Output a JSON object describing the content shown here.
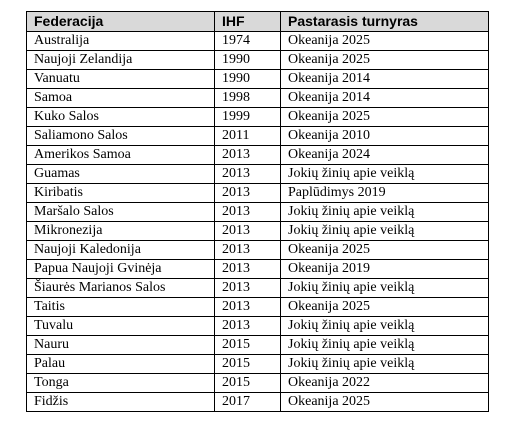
{
  "table": {
    "headers": [
      "Federacija",
      "IHF",
      "Pastarasis turnyras"
    ],
    "rows": [
      [
        "Australija",
        "1974",
        "Okeanija 2025"
      ],
      [
        "Naujoji Zelandija",
        "1990",
        "Okeanija 2025"
      ],
      [
        "Vanuatu",
        "1990",
        "Okeanija 2014"
      ],
      [
        "Samoa",
        "1998",
        "Okeanija 2014"
      ],
      [
        "Kuko Salos",
        "1999",
        "Okeanija 2025"
      ],
      [
        "Saliamono Salos",
        "2011",
        "Okeanija 2010"
      ],
      [
        "Amerikos Samoa",
        "2013",
        "Okeanija 2024"
      ],
      [
        "Guamas",
        "2013",
        "Jokių žinių apie veiklą"
      ],
      [
        "Kiribatis",
        "2013",
        "Paplūdimys 2019"
      ],
      [
        "Maršalo Salos",
        "2013",
        "Jokių žinių apie veiklą"
      ],
      [
        "Mikronezija",
        "2013",
        "Jokių žinių apie veiklą"
      ],
      [
        "Naujoji Kaledonija",
        "2013",
        "Okeanija 2025"
      ],
      [
        "Papua Naujoji Gvinėja",
        "2013",
        "Okeanija 2019"
      ],
      [
        "Šiaurės Marianos Salos",
        "2013",
        "Jokių žinių apie veiklą"
      ],
      [
        "Taitis",
        "2013",
        "Okeanija 2025"
      ],
      [
        "Tuvalu",
        "2013",
        "Jokių žinių apie veiklą"
      ],
      [
        "Nauru",
        "2015",
        "Jokių žinių apie veiklą"
      ],
      [
        "Palau",
        "2015",
        "Jokių žinių apie veiklą"
      ],
      [
        "Tonga",
        "2015",
        "Okeanija 2022"
      ],
      [
        "Fidžis",
        "2017",
        "Okeanija 2025"
      ]
    ]
  }
}
